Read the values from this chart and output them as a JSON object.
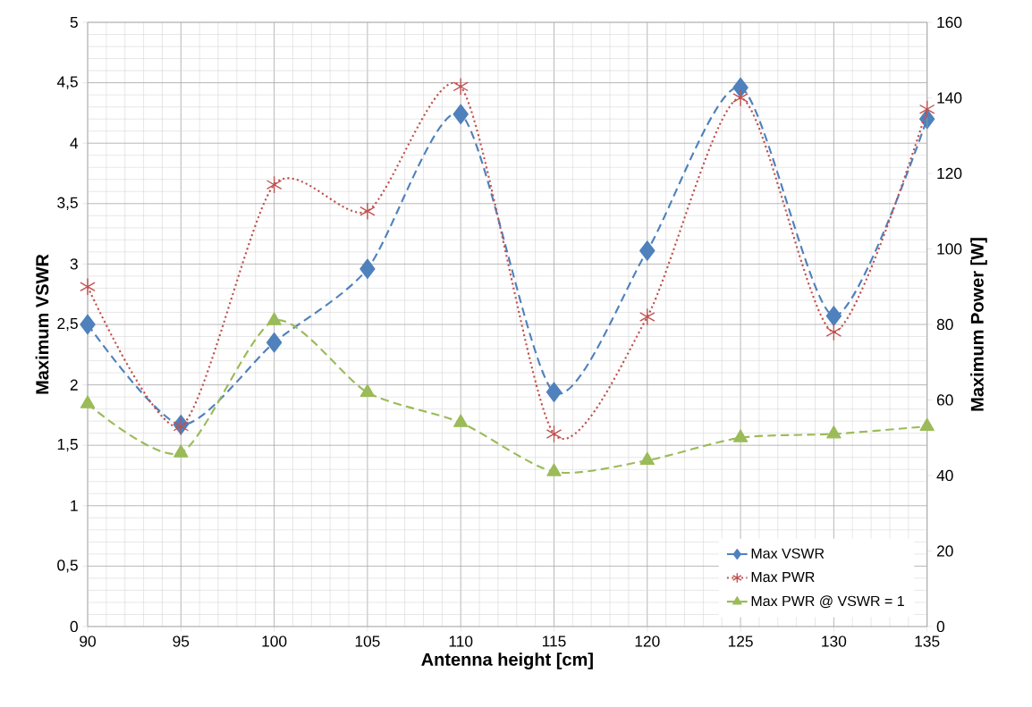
{
  "chart_data": {
    "type": "line",
    "xlabel": "Antenna height [cm]",
    "ylabel": "Maximum VSWR",
    "y2label": "Maximum Power [W]",
    "x": [
      90,
      95,
      100,
      105,
      110,
      115,
      120,
      125,
      130,
      135
    ],
    "series": [
      {
        "name": "Max VSWR",
        "color": "#4f81bd",
        "marker": "diamond",
        "line_style": "dashed",
        "values": [
          2.5,
          1.67,
          2.35,
          2.96,
          4.24,
          1.94,
          3.11,
          4.46,
          2.57,
          4.2
        ]
      },
      {
        "name": "Max PWR",
        "color": "#c0504d",
        "marker": "cross",
        "line_style": "dotted",
        "axis": "y2",
        "values": [
          90,
          53,
          117,
          110,
          143,
          51,
          82,
          140,
          78,
          137
        ]
      },
      {
        "name": "Max PWR @ VSWR = 1",
        "color": "#9bbb59",
        "marker": "triangle",
        "line_style": "dashed",
        "axis": "y2",
        "values": [
          59,
          46,
          81,
          62,
          54,
          41,
          44,
          50,
          51,
          53
        ]
      }
    ],
    "xlim": [
      90,
      135
    ],
    "xticks": [
      90,
      95,
      100,
      105,
      110,
      115,
      120,
      125,
      130,
      135
    ],
    "ylim": [
      0,
      5
    ],
    "yticks": [
      0,
      {
        "value": 0.5,
        "label": "0,5"
      },
      1,
      {
        "value": 1.5,
        "label": "1,5"
      },
      2,
      {
        "value": 2.5,
        "label": "2,5"
      },
      3,
      {
        "value": 3.5,
        "label": "3,5"
      },
      4,
      {
        "value": 4.5,
        "label": "4,5"
      },
      5
    ],
    "y2lim": [
      0,
      160
    ],
    "y2ticks": [
      0,
      20,
      40,
      60,
      80,
      100,
      120,
      140,
      160
    ],
    "grid": true,
    "legend": "bottom right"
  }
}
